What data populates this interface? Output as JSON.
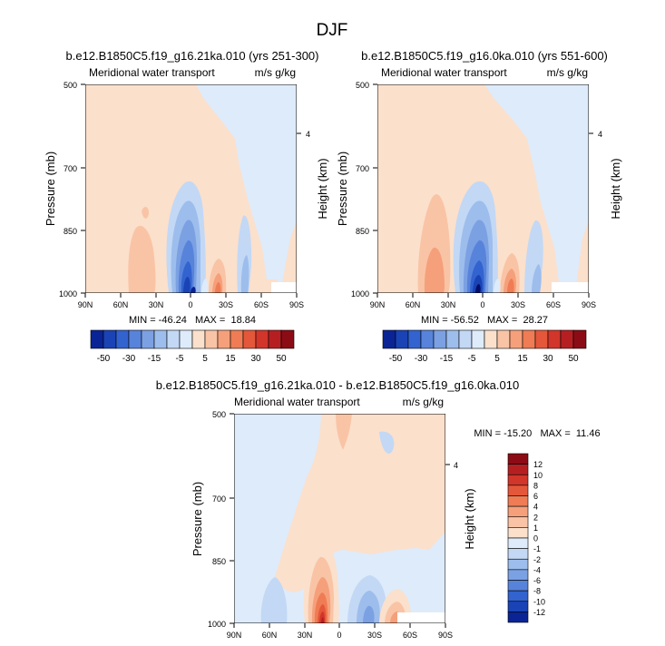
{
  "page": {
    "title": "DJF"
  },
  "chart_data": [
    {
      "type": "heatmap",
      "title": "b.e12.B1850C5.f19_g16.21ka.010 (yrs 251-300)",
      "left_title": "Meridional water transport",
      "units": "m/s g/kg",
      "ylabel": "Pressure (mb)",
      "ylabel_right": "Height (km)",
      "right_ticks": [
        "4"
      ],
      "x_ticks": [
        "90N",
        "60N",
        "30N",
        "0",
        "30S",
        "60S",
        "90S"
      ],
      "y_ticks": [
        "500",
        "700",
        "850",
        "1000"
      ],
      "stats": "MIN = -46.24   MAX =  18.84",
      "colorbar_labels": [
        "-50",
        "-30",
        "-15",
        "-5",
        "5",
        "15",
        "30",
        "50"
      ]
    },
    {
      "type": "heatmap",
      "title": "b.e12.B1850C5.f19_g16.0ka.010 (yrs 551-600)",
      "left_title": "Meridional water transport",
      "units": "m/s g/kg",
      "ylabel": "Pressure (mb)",
      "ylabel_right": "Height (km)",
      "right_ticks": [
        "4"
      ],
      "x_ticks": [
        "90N",
        "60N",
        "30N",
        "0",
        "30S",
        "60S",
        "90S"
      ],
      "y_ticks": [
        "500",
        "700",
        "850",
        "1000"
      ],
      "stats": "MIN = -56.52   MAX =  28.27",
      "colorbar_labels": [
        "-50",
        "-30",
        "-15",
        "-5",
        "5",
        "15",
        "30",
        "50"
      ]
    },
    {
      "type": "heatmap",
      "title": "b.e12.B1850C5.f19_g16.21ka.010 - b.e12.B1850C5.f19_g16.0ka.010",
      "left_title": "Meridional water transport",
      "units": "m/s g/kg",
      "ylabel": "Pressure (mb)",
      "ylabel_right": "Height (km)",
      "right_ticks": [
        "4"
      ],
      "x_ticks": [
        "90N",
        "60N",
        "30N",
        "0",
        "30S",
        "60S",
        "90S"
      ],
      "y_ticks": [
        "500",
        "700",
        "850",
        "1000"
      ],
      "stats": "MIN = -15.20   MAX =  11.46",
      "colorbar_labels": [
        "12",
        "10",
        "8",
        "6",
        "4",
        "2",
        "1",
        "0",
        "-1",
        "-2",
        "-4",
        "-6",
        "-8",
        "-10",
        "-12"
      ]
    }
  ],
  "colors": {
    "warm_palette": [
      "#fbe0cc",
      "#f9c4a5",
      "#f5a07b",
      "#ef7c54",
      "#e5573a",
      "#d2352a",
      "#b61f22",
      "#8c0c15"
    ],
    "cool_palette": [
      "#deebfa",
      "#c2d8f5",
      "#9dbdec",
      "#7ba1e3",
      "#5783db",
      "#3263cf",
      "#1a43b5",
      "#0a2495",
      "#050f6b"
    ]
  }
}
